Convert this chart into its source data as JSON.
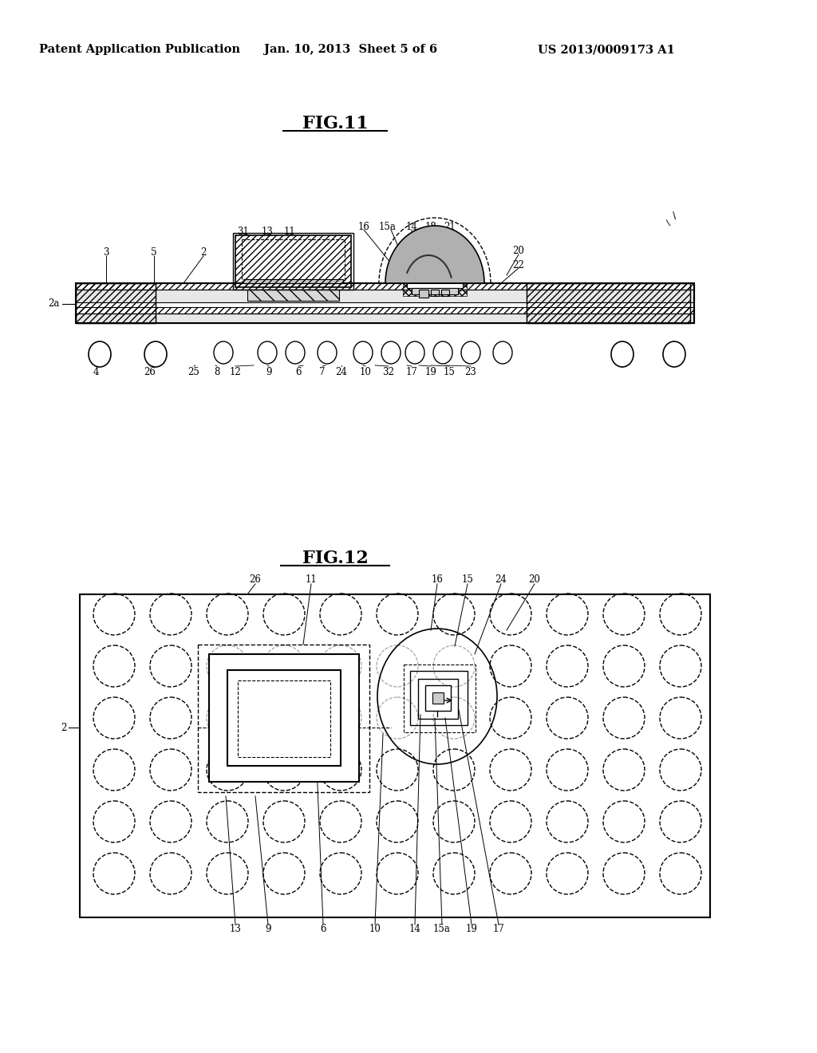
{
  "bg_color": "#ffffff",
  "header_left": "Patent Application Publication",
  "header_mid": "Jan. 10, 2013  Sheet 5 of 6",
  "header_right": "US 2013/0009173 A1",
  "fig11_title": "FIG.11",
  "fig12_title": "FIG.12"
}
